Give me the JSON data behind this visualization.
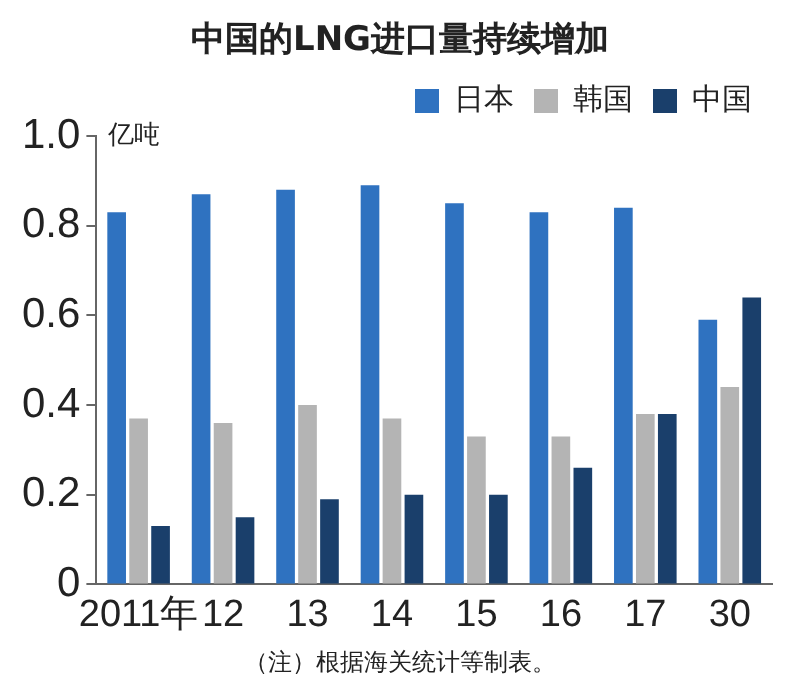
{
  "chart_data": {
    "type": "bar",
    "title": "中国的LNG进口量持续增加",
    "ylabel": "亿吨",
    "categories": [
      "2011年",
      "12",
      "13",
      "14",
      "15",
      "16",
      "17",
      "30"
    ],
    "series": [
      {
        "name": "日本",
        "color": "#2f72c0",
        "values": [
          0.83,
          0.87,
          0.88,
          0.89,
          0.85,
          0.83,
          0.84,
          0.59
        ]
      },
      {
        "name": "韩国",
        "color": "#b4b4b4",
        "values": [
          0.37,
          0.36,
          0.4,
          0.37,
          0.33,
          0.33,
          0.38,
          0.44
        ]
      },
      {
        "name": "中国",
        "color": "#1a3f6b",
        "values": [
          0.13,
          0.15,
          0.19,
          0.2,
          0.2,
          0.26,
          0.38,
          0.64
        ]
      }
    ],
    "ylim": [
      0,
      1.0
    ],
    "yticks": [
      0,
      0.2,
      0.4,
      0.6,
      0.8,
      {
        "value": 1.0,
        "label": "1.0"
      }
    ],
    "grid": false,
    "legend": "top right",
    "annotations": [
      "（注）根据海关统计等制表。"
    ]
  }
}
